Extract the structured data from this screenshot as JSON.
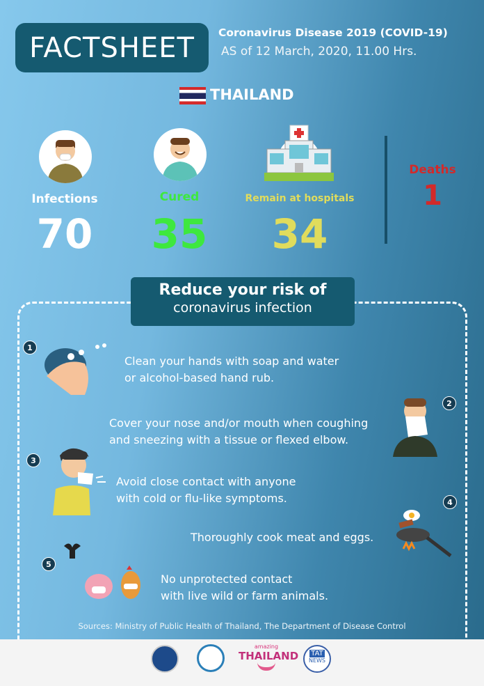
{
  "header": {
    "badge": "FACTSHEET",
    "title": "Coronavirus Disease 2019 (COVID-19)",
    "as_of": "AS of 12 March, 2020, 11.00 Hrs."
  },
  "country": {
    "name": "THAILAND",
    "flag": "thailand-flag"
  },
  "stats": [
    {
      "label": "Infections",
      "value": "70",
      "color": "#ffffff",
      "icon": "masked-person-icon"
    },
    {
      "label": "Cured",
      "value": "35",
      "color": "#3ee83e",
      "icon": "smiling-person-icon"
    },
    {
      "label": "Remain at hospitals",
      "value": "34",
      "color": "#e0dc5c",
      "icon": "hospital-icon"
    },
    {
      "label": "Deaths",
      "value": "1",
      "color": "#d22a2a"
    }
  ],
  "risk": {
    "title": "Reduce your risk of",
    "subtitle": "coronavirus infection",
    "tips": [
      {
        "n": "1",
        "line1": "Clean your hands with soap and water",
        "line2": "or alcohol-based hand rub.",
        "icon": "hand-washing-icon"
      },
      {
        "n": "2",
        "line1": "Cover your nose and/or mouth when coughing",
        "line2": "and sneezing with a tissue or flexed elbow.",
        "icon": "sneezing-person-icon"
      },
      {
        "n": "3",
        "line1": "Avoid close contact with anyone",
        "line2": "with cold or flu-like symptoms.",
        "icon": "sick-person-icon"
      },
      {
        "n": "4",
        "line1": "Thoroughly cook meat and eggs.",
        "icon": "frying-pan-icon"
      },
      {
        "n": "5",
        "line1": "No unprotected contact",
        "line2": "with live wild or farm animals.",
        "icon": "animals-icon"
      }
    ]
  },
  "sources": "Sources: Ministry of Public Health of Thailand, The Department of Disease Control",
  "footer": {
    "logos": [
      "ministry-of-public-health-logo",
      "department-of-disease-control-logo",
      "amazing-thailand-logo",
      "tat-news-logo"
    ],
    "amazing_small": "amazing",
    "amazing_big": "THAILAND",
    "tat_top": "TAT",
    "tat_bottom": "NEWS"
  }
}
